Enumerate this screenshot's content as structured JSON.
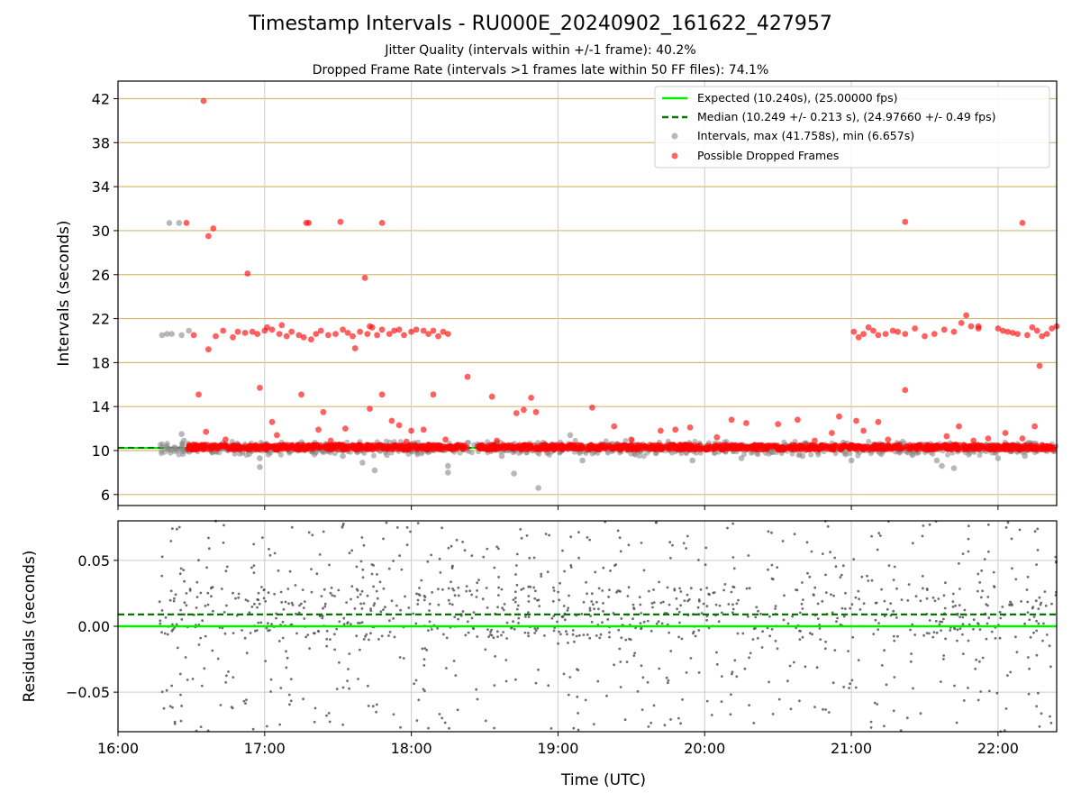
{
  "title": "Timestamp Intervals - RU000E_20240902_161622_427957",
  "subtitle_jitter": "Jitter Quality (intervals within +/-1 frame): 40.2%",
  "subtitle_dropped": "Dropped Frame Rate (intervals >1 frames late within 50 FF files): 74.1%",
  "colors": {
    "expected": "#00ee00",
    "median": "#007700",
    "intervals": "#888888",
    "dropped": "#ff0000",
    "top_grid": "#d8b870",
    "grid": "#cccccc",
    "residuals": "#555555"
  },
  "chart_data": [
    {
      "type": "scatter",
      "ylabel": "Intervals (seconds)",
      "ylim": [
        5,
        43.6
      ],
      "xlim": [
        "16:00",
        "22:24"
      ],
      "yticks": [
        "6",
        "10",
        "14",
        "18",
        "22",
        "26",
        "30",
        "34",
        "38",
        "42"
      ],
      "grid": true,
      "legend_position": "upper right",
      "legend": [
        "Expected (10.240s), (25.00000 fps)",
        "Median (10.249 +/- 0.213 s), (24.97660 +/- 0.49 fps)",
        "Intervals, max (41.758s), min (6.657s)",
        "Possible Dropped Frames"
      ],
      "expected_interval": 10.24,
      "median_interval": 10.249,
      "series": [
        {
          "name": "Intervals, max (41.758s), min (6.657s)",
          "band": {
            "x_start": "16:17",
            "x_end": "22:24",
            "y_center": 10.2,
            "spread": 0.55
          },
          "points": [
            [
              "16:18",
              20.5
            ],
            [
              "16:20",
              20.6
            ],
            [
              "16:22",
              20.6
            ],
            [
              "16:26",
              20.5
            ],
            [
              "16:29",
              20.9
            ],
            [
              "16:21",
              30.7
            ],
            [
              "16:25",
              30.7
            ],
            [
              "16:26",
              11.5
            ],
            [
              "16:27",
              10.9
            ],
            [
              "16:58",
              8.5
            ],
            [
              "16:58",
              9.3
            ],
            [
              "17:32",
              9.5
            ],
            [
              "17:40",
              8.9
            ],
            [
              "17:45",
              8.2
            ],
            [
              "17:50",
              9.6
            ],
            [
              "18:15",
              8.0
            ],
            [
              "18:15",
              8.6
            ],
            [
              "18:37",
              9.5
            ],
            [
              "18:42",
              7.9
            ],
            [
              "18:52",
              6.6
            ],
            [
              "19:05",
              11.4
            ],
            [
              "19:10",
              9.1
            ],
            [
              "19:55",
              9.1
            ],
            [
              "20:15",
              9.3
            ],
            [
              "20:40",
              9.5
            ],
            [
              "21:00",
              9.1
            ],
            [
              "21:25",
              9.6
            ],
            [
              "21:35",
              9.1
            ],
            [
              "21:37",
              8.6
            ],
            [
              "21:42",
              8.4
            ],
            [
              "22:00",
              9.3
            ],
            [
              "22:11",
              9.5
            ]
          ]
        },
        {
          "name": "Possible Dropped Frames",
          "band": [
            [
              "16:28",
              "18:23"
            ],
            [
              "18:27",
              "22:24"
            ]
          ],
          "band_y": 10.3,
          "points": [
            [
              "16:35",
              41.8
            ],
            [
              "16:28",
              30.7
            ],
            [
              "16:39",
              30.2
            ],
            [
              "16:37",
              29.5
            ],
            [
              "16:53",
              26.1
            ],
            [
              "17:17",
              30.7
            ],
            [
              "17:18",
              30.7
            ],
            [
              "17:31",
              30.8
            ],
            [
              "17:48",
              30.7
            ],
            [
              "17:41",
              25.7
            ],
            [
              "21:22",
              30.8
            ],
            [
              "22:10",
              30.7
            ],
            [
              "16:31",
              20.5
            ],
            [
              "16:37",
              19.2
            ],
            [
              "16:40",
              20.4
            ],
            [
              "16:43",
              20.9
            ],
            [
              "16:47",
              20.3
            ],
            [
              "16:49",
              20.8
            ],
            [
              "16:52",
              20.7
            ],
            [
              "16:55",
              20.8
            ],
            [
              "16:57",
              20.6
            ],
            [
              "17:00",
              20.9
            ],
            [
              "17:01",
              21.2
            ],
            [
              "17:03",
              21.0
            ],
            [
              "17:06",
              20.6
            ],
            [
              "17:09",
              20.4
            ],
            [
              "17:11",
              20.8
            ],
            [
              "17:14",
              20.5
            ],
            [
              "17:16",
              20.3
            ],
            [
              "17:19",
              20.1
            ],
            [
              "17:21",
              20.6
            ],
            [
              "17:23",
              20.9
            ],
            [
              "17:26",
              20.5
            ],
            [
              "17:29",
              20.6
            ],
            [
              "17:32",
              21.0
            ],
            [
              "17:34",
              20.7
            ],
            [
              "17:36",
              20.4
            ],
            [
              "17:37",
              19.3
            ],
            [
              "17:39",
              20.8
            ],
            [
              "17:42",
              20.6
            ],
            [
              "17:44",
              21.2
            ],
            [
              "17:46",
              20.5
            ],
            [
              "17:48",
              21.0
            ],
            [
              "17:51",
              20.6
            ],
            [
              "17:53",
              20.9
            ],
            [
              "17:55",
              21.0
            ],
            [
              "17:57",
              20.5
            ],
            [
              "18:00",
              20.8
            ],
            [
              "18:02",
              21.0
            ],
            [
              "18:05",
              20.9
            ],
            [
              "18:07",
              20.6
            ],
            [
              "18:09",
              20.9
            ],
            [
              "18:11",
              20.4
            ],
            [
              "18:13",
              20.8
            ],
            [
              "18:15",
              20.6
            ],
            [
              "17:07",
              21.4
            ],
            [
              "17:43",
              21.3
            ],
            [
              "21:01",
              20.8
            ],
            [
              "21:03",
              20.3
            ],
            [
              "21:05",
              20.6
            ],
            [
              "21:07",
              21.2
            ],
            [
              "21:09",
              20.9
            ],
            [
              "21:11",
              20.5
            ],
            [
              "21:14",
              20.6
            ],
            [
              "21:17",
              20.9
            ],
            [
              "21:19",
              20.8
            ],
            [
              "21:22",
              20.6
            ],
            [
              "21:26",
              21.1
            ],
            [
              "21:30",
              20.4
            ],
            [
              "21:34",
              20.6
            ],
            [
              "21:38",
              21.0
            ],
            [
              "21:42",
              20.8
            ],
            [
              "21:45",
              21.6
            ],
            [
              "21:47",
              22.3
            ],
            [
              "21:49",
              21.3
            ],
            [
              "21:52",
              21.1
            ],
            [
              "22:00",
              21.1
            ],
            [
              "22:02",
              20.9
            ],
            [
              "22:04",
              20.8
            ],
            [
              "22:06",
              20.7
            ],
            [
              "22:08",
              20.6
            ],
            [
              "22:12",
              20.5
            ],
            [
              "22:14",
              21.2
            ],
            [
              "22:16",
              20.9
            ],
            [
              "22:18",
              20.4
            ],
            [
              "22:20",
              20.6
            ],
            [
              "22:22",
              21.1
            ],
            [
              "22:24",
              21.3
            ],
            [
              "21:52",
              21.3
            ],
            [
              "16:36",
              11.7
            ],
            [
              "16:33",
              15.1
            ],
            [
              "16:58",
              15.7
            ],
            [
              "17:03",
              12.6
            ],
            [
              "17:15",
              15.1
            ],
            [
              "17:22",
              11.9
            ],
            [
              "17:24",
              13.5
            ],
            [
              "17:33",
              12.0
            ],
            [
              "17:43",
              13.8
            ],
            [
              "17:48",
              15.1
            ],
            [
              "17:52",
              12.7
            ],
            [
              "17:55",
              12.3
            ],
            [
              "18:00",
              11.8
            ],
            [
              "18:05",
              11.9
            ],
            [
              "18:09",
              15.1
            ],
            [
              "18:14",
              11.0
            ],
            [
              "18:23",
              16.7
            ],
            [
              "18:33",
              14.9
            ],
            [
              "18:43",
              13.4
            ],
            [
              "18:46",
              13.7
            ],
            [
              "18:49",
              14.8
            ],
            [
              "18:51",
              13.5
            ],
            [
              "19:14",
              13.9
            ],
            [
              "19:23",
              12.2
            ],
            [
              "19:42",
              11.8
            ],
            [
              "19:48",
              11.9
            ],
            [
              "19:54",
              12.1
            ],
            [
              "20:11",
              12.8
            ],
            [
              "20:17",
              12.5
            ],
            [
              "20:30",
              12.4
            ],
            [
              "20:38",
              12.8
            ],
            [
              "20:52",
              11.6
            ],
            [
              "20:55",
              13.1
            ],
            [
              "21:02",
              12.7
            ],
            [
              "21:05",
              11.8
            ],
            [
              "21:11",
              12.6
            ],
            [
              "21:22",
              15.5
            ],
            [
              "21:39",
              11.3
            ],
            [
              "21:44",
              12.2
            ],
            [
              "21:56",
              11.1
            ],
            [
              "22:03",
              11.6
            ],
            [
              "22:15",
              12.2
            ],
            [
              "22:17",
              17.7
            ],
            [
              "16:44",
              11.0
            ],
            [
              "17:05",
              11.4
            ],
            [
              "17:27",
              10.9
            ],
            [
              "17:58",
              10.8
            ],
            [
              "18:35",
              10.9
            ],
            [
              "19:30",
              11.0
            ],
            [
              "20:05",
              11.2
            ],
            [
              "20:45",
              10.9
            ],
            [
              "21:15",
              11.0
            ],
            [
              "21:50",
              10.9
            ],
            [
              "22:10",
              11.1
            ]
          ]
        }
      ]
    },
    {
      "type": "scatter",
      "xlabel": "Time (UTC)",
      "ylabel": "Residuals (seconds)",
      "ylim": [
        -0.08,
        0.08
      ],
      "xlim": [
        "16:00",
        "22:24"
      ],
      "yticks": [
        "−0.05",
        "0.00",
        "0.05"
      ],
      "xticks": [
        "16:00",
        "17:00",
        "18:00",
        "19:00",
        "20:00",
        "21:00",
        "22:00"
      ],
      "grid": true,
      "expected_residual": 0.0,
      "median_residual": 0.009,
      "series": [
        {
          "name": "",
          "x_range": [
            "16:17",
            "22:24"
          ],
          "y_range": [
            -0.08,
            0.08
          ],
          "center": 0.01
        }
      ]
    }
  ]
}
